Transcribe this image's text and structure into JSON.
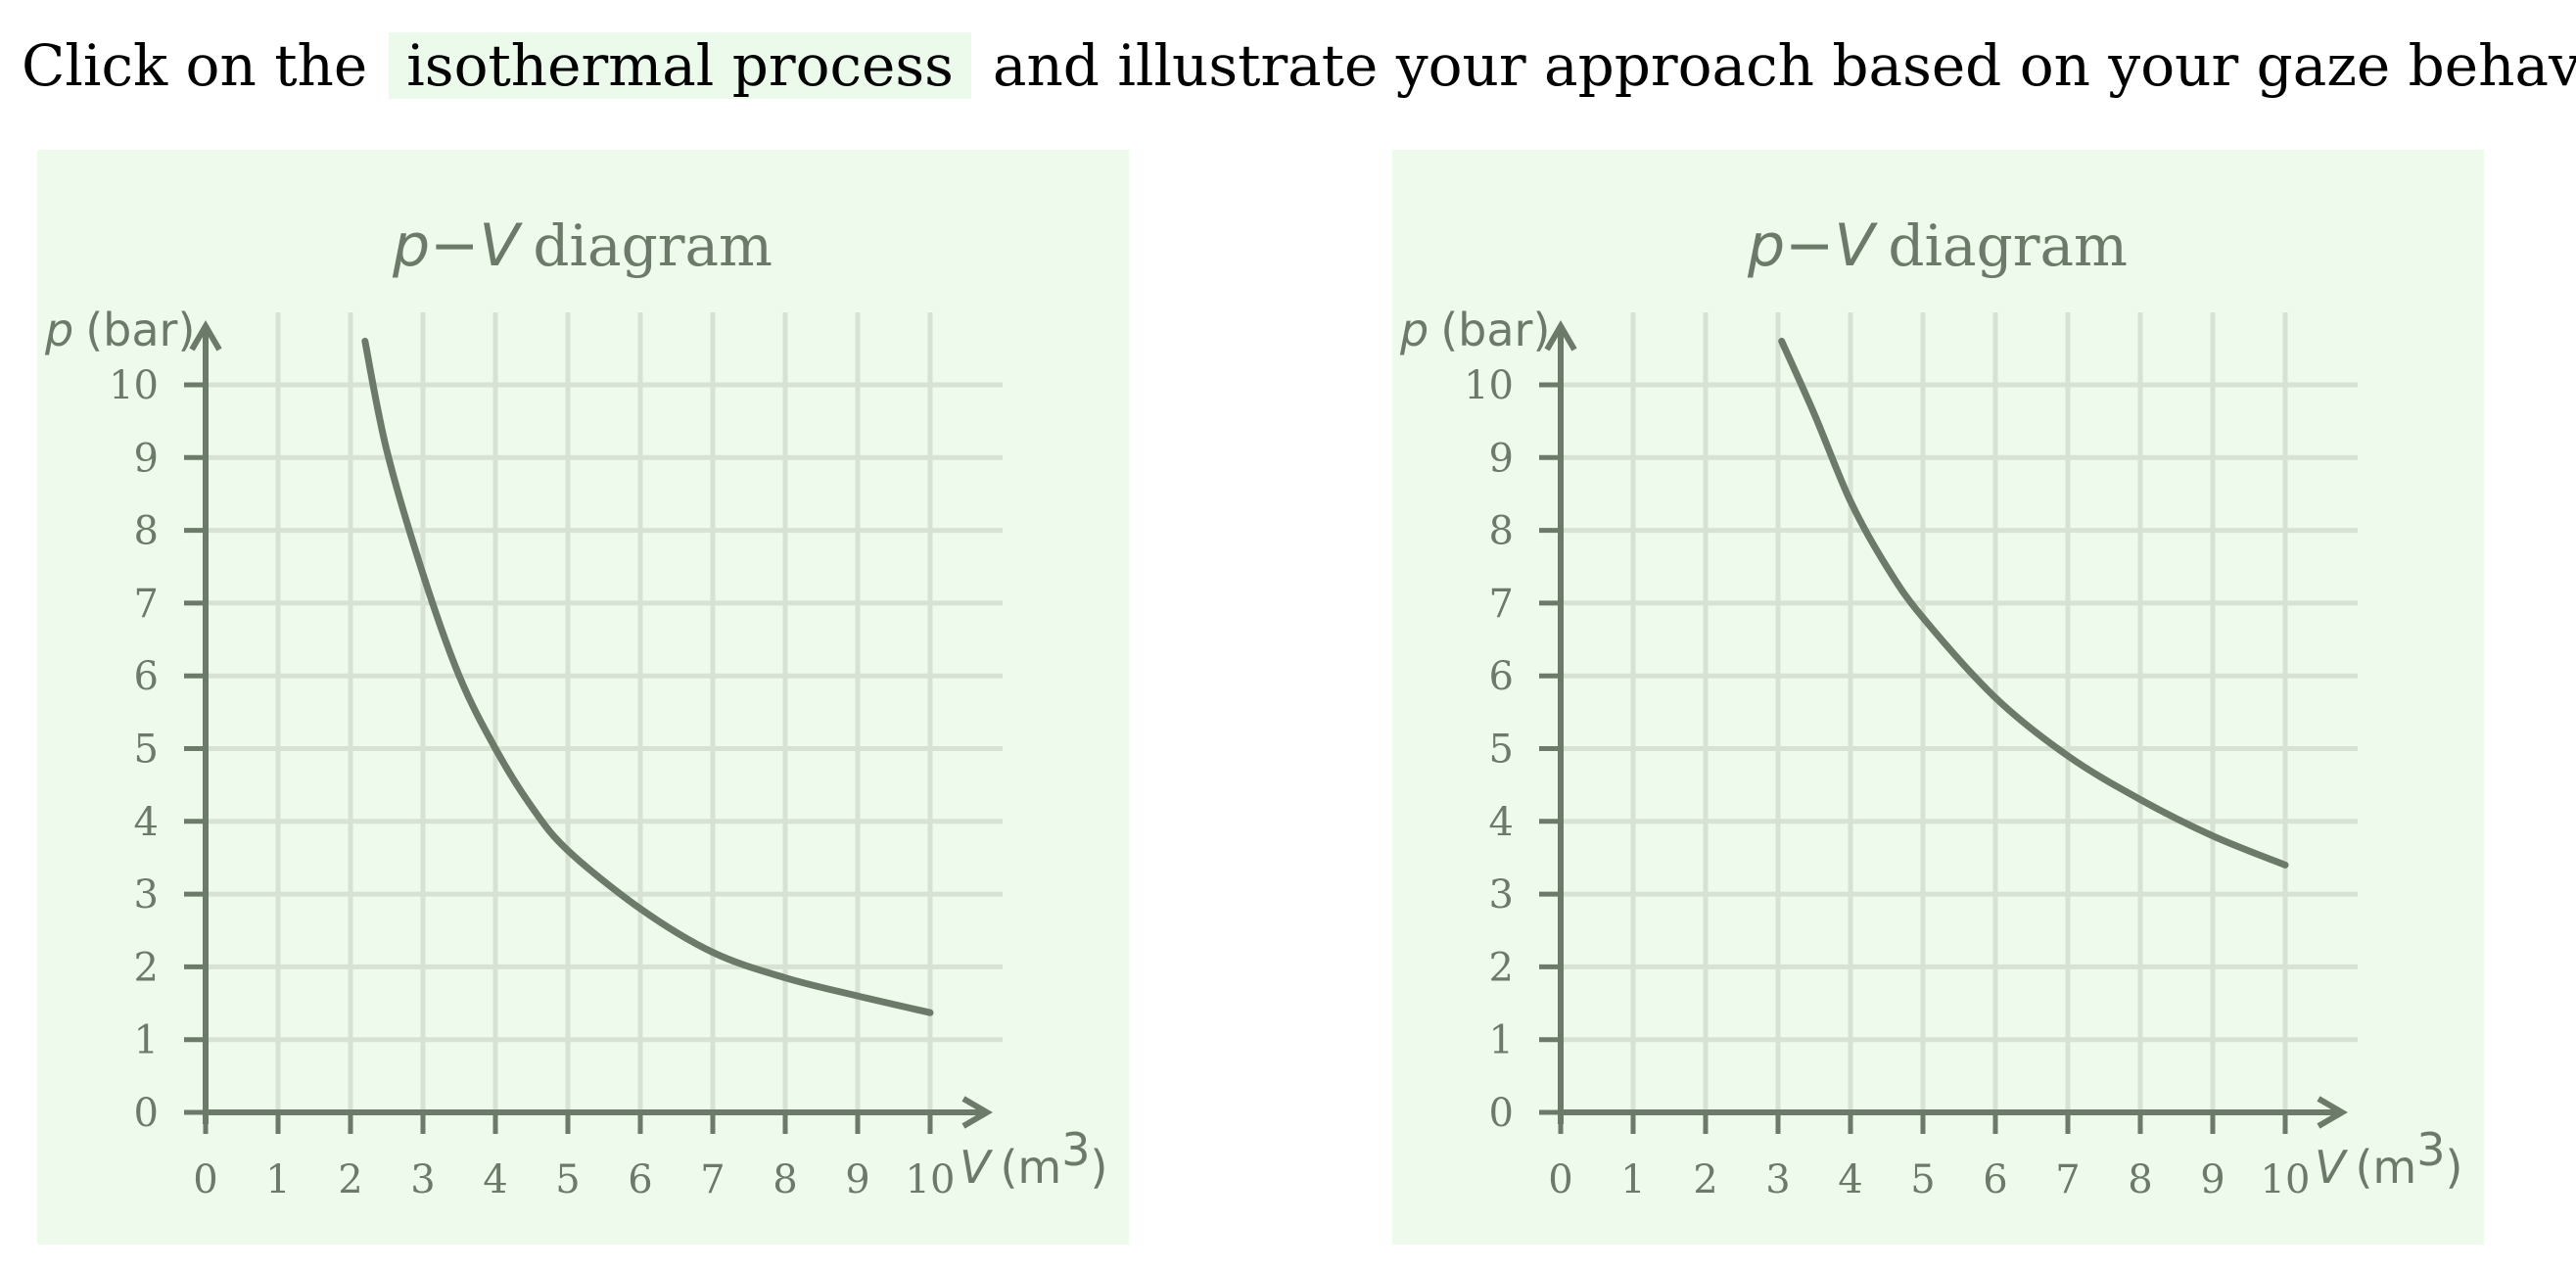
{
  "prompt": {
    "before": "Click on the",
    "highlight": "isothermal process",
    "after": "and illustrate your approach based on your gaze behavior!"
  },
  "colors": {
    "panel_background": "#eefbec",
    "highlight_background": "#ebfaeb",
    "curve": "#6b7a69",
    "grid": "#d7e2d4"
  },
  "chart_data": [
    {
      "type": "line",
      "title_var": "p−V",
      "title_word": "diagram",
      "ylabel_var": "p",
      "ylabel_unit": "(bar)",
      "xlabel_var": "V",
      "xlabel_unit": "(m",
      "xlabel_sup": "3",
      "xlabel_close": ")",
      "xlim": [
        0,
        10
      ],
      "ylim": [
        0,
        10
      ],
      "x_ticks": [
        "0",
        "1",
        "2",
        "3",
        "4",
        "5",
        "6",
        "7",
        "8",
        "9",
        "10"
      ],
      "y_ticks": [
        "0",
        "1",
        "2",
        "3",
        "4",
        "5",
        "6",
        "7",
        "8",
        "9",
        "10"
      ],
      "grid": true,
      "series": [
        {
          "x": [
            2.2,
            2.5,
            3,
            3.5,
            4,
            4.5,
            5,
            6,
            7,
            8,
            9,
            10
          ],
          "y": [
            10.6,
            9.1,
            7.4,
            6.0,
            5.0,
            4.2,
            3.6,
            2.8,
            2.2,
            1.85,
            1.6,
            1.37
          ]
        }
      ]
    },
    {
      "type": "line",
      "title_var": "p−V",
      "title_word": "diagram",
      "ylabel_var": "p",
      "ylabel_unit": "(bar)",
      "xlabel_var": "V",
      "xlabel_unit": "(m",
      "xlabel_sup": "3",
      "xlabel_close": ")",
      "xlim": [
        0,
        10
      ],
      "ylim": [
        0,
        10
      ],
      "x_ticks": [
        "0",
        "1",
        "2",
        "3",
        "4",
        "5",
        "6",
        "7",
        "8",
        "9",
        "10"
      ],
      "y_ticks": [
        "0",
        "1",
        "2",
        "3",
        "4",
        "5",
        "6",
        "7",
        "8",
        "9",
        "10"
      ],
      "grid": true,
      "series": [
        {
          "x": [
            3.05,
            3.5,
            4,
            4.5,
            5,
            6,
            7,
            8,
            9,
            10
          ],
          "y": [
            10.6,
            9.6,
            8.4,
            7.5,
            6.8,
            5.7,
            4.9,
            4.3,
            3.8,
            3.4
          ]
        }
      ]
    }
  ]
}
